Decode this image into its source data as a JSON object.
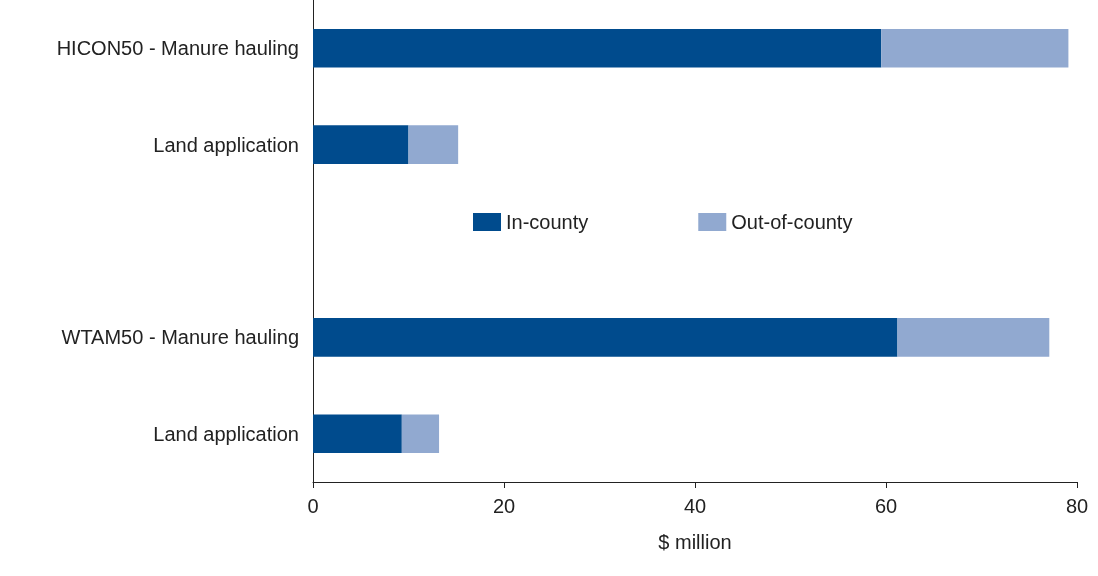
{
  "chart_data": {
    "type": "bar",
    "orientation": "horizontal",
    "stacked": true,
    "xlabel": "$ million",
    "categories": [
      "HICON50 - Manure hauling",
      "Land application",
      null,
      "WTAM50 - Manure hauling",
      "Land application"
    ],
    "series": [
      {
        "name": "In-county",
        "color": "#004b8d",
        "values": [
          59.5,
          10,
          null,
          61.2,
          9.3
        ]
      },
      {
        "name": "Out-of-county",
        "color": "#91a9d0",
        "values": [
          19.6,
          5.2,
          null,
          15.9,
          3.9
        ]
      }
    ],
    "xlim": [
      0,
      80
    ],
    "xticks": [
      0,
      20,
      40,
      60,
      80
    ],
    "grid": false,
    "legend": "center"
  }
}
